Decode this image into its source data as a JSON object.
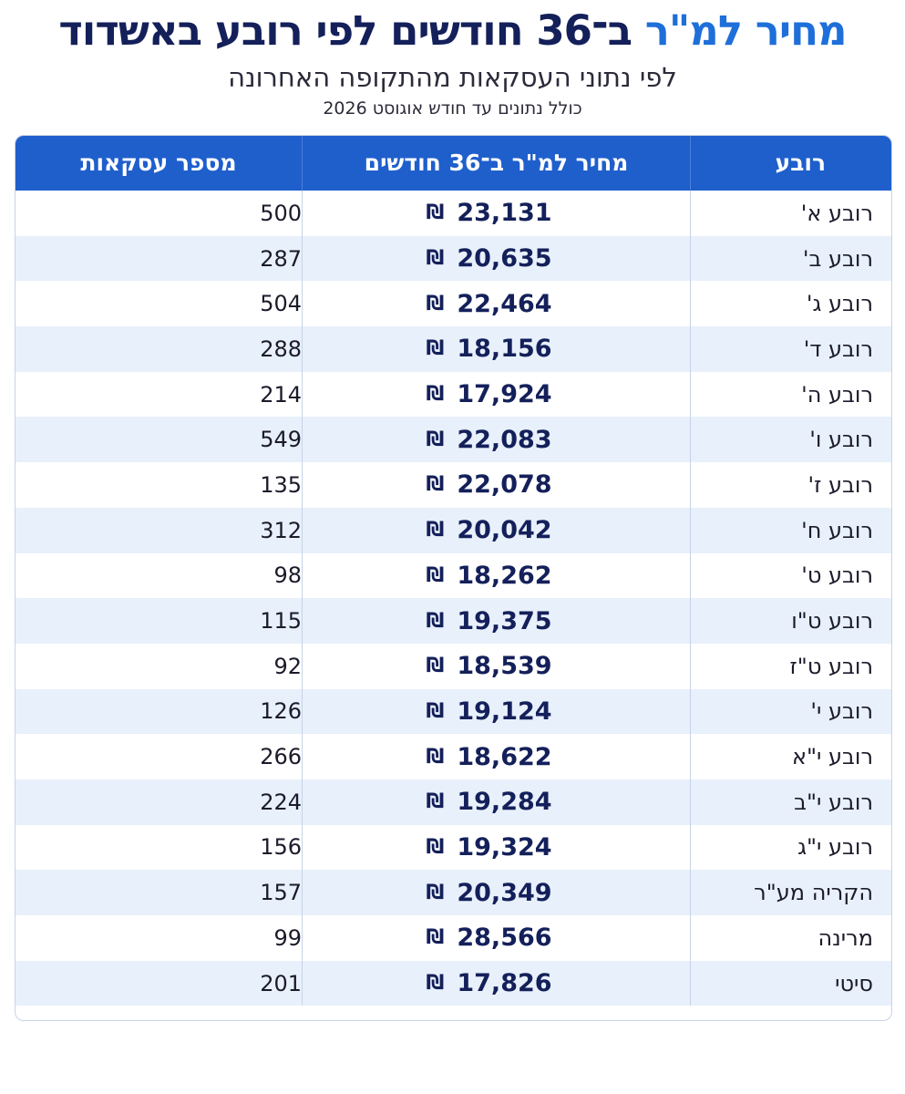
{
  "header": {
    "title_accent": "מחיר למ\"ר",
    "title_main": "ב־36 חודשים לפי רובע באשדוד",
    "subtitle": "לפי נתוני העסקאות מהתקופה האחרונה",
    "note": "כולל נתונים עד חודש אוגוסט 2026"
  },
  "table": {
    "columns": {
      "area": "רובע",
      "price": "מחיר למ\"ר ב־36 חודשים",
      "count": "מספר עסקאות"
    },
    "currency_symbol": "₪",
    "rows": [
      {
        "area": "רובע א'",
        "price": "23,131",
        "count": "500"
      },
      {
        "area": "רובע ב'",
        "price": "20,635",
        "count": "287"
      },
      {
        "area": "רובע ג'",
        "price": "22,464",
        "count": "504"
      },
      {
        "area": "רובע ד'",
        "price": "18,156",
        "count": "288"
      },
      {
        "area": "רובע ה'",
        "price": "17,924",
        "count": "214"
      },
      {
        "area": "רובע ו'",
        "price": "22,083",
        "count": "549"
      },
      {
        "area": "רובע ז'",
        "price": "22,078",
        "count": "135"
      },
      {
        "area": "רובע ח'",
        "price": "20,042",
        "count": "312"
      },
      {
        "area": "רובע ט'",
        "price": "18,262",
        "count": "98"
      },
      {
        "area": "רובע ט\"ו",
        "price": "19,375",
        "count": "115"
      },
      {
        "area": "רובע ט\"ז",
        "price": "18,539",
        "count": "92"
      },
      {
        "area": "רובע י'",
        "price": "19,124",
        "count": "126"
      },
      {
        "area": "רובע י\"א",
        "price": "18,622",
        "count": "266"
      },
      {
        "area": "רובע י\"ב",
        "price": "19,284",
        "count": "224"
      },
      {
        "area": "רובע י\"ג",
        "price": "19,324",
        "count": "156"
      },
      {
        "area": "הקריה מע\"ר",
        "price": "20,349",
        "count": "157"
      },
      {
        "area": "מרינה",
        "price": "28,566",
        "count": "99"
      },
      {
        "area": "סיטי",
        "price": "17,826",
        "count": "201"
      }
    ]
  },
  "colors": {
    "accent": "#1e6fd9",
    "title_dark": "#14205a",
    "header_bg": "#1f5fcc",
    "alt_row_bg": "#e8f0fb"
  }
}
